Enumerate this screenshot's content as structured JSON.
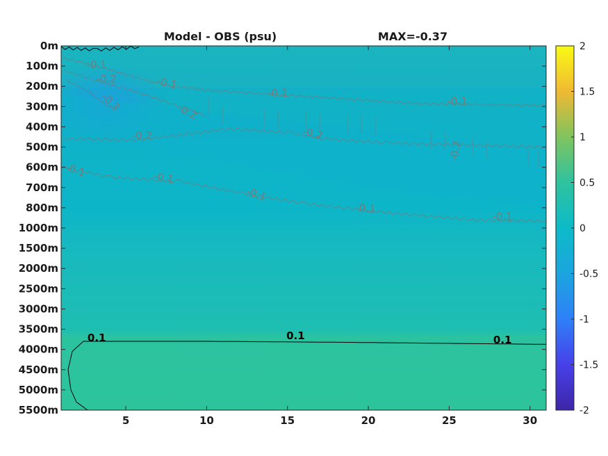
{
  "chart_data": {
    "type": "heatmap",
    "title": "Model - OBS (psu)",
    "annotation": "MAX=-0.37",
    "x_ticks": [
      "5",
      "10",
      "15",
      "20",
      "25",
      "30"
    ],
    "x_tick_values": [
      5,
      10,
      15,
      20,
      25,
      30
    ],
    "xlim": [
      1,
      31
    ],
    "y_ticks": [
      "0m",
      "100m",
      "200m",
      "300m",
      "400m",
      "500m",
      "600m",
      "700m",
      "800m",
      "1000m",
      "1500m",
      "2000m",
      "2500m",
      "3000m",
      "3500m",
      "4000m",
      "4500m",
      "5000m",
      "5500m"
    ],
    "colorbar": {
      "range": [
        -2,
        2
      ],
      "ticks": [
        "2",
        "1.5",
        "1",
        "0.5",
        "0",
        "-0.5",
        "-1",
        "-1.5",
        "-2"
      ],
      "colormap": "parula"
    },
    "contours": [
      {
        "level": "-0.1",
        "color": "#7a7a7a"
      },
      {
        "level": "-0.2",
        "color": "#7a7a7a"
      },
      {
        "level": "-0.3",
        "color": "#7a7a7a"
      },
      {
        "level": "0.1",
        "color": "#000000"
      }
    ],
    "contour_labels": [
      {
        "text": "-0.1",
        "x": 3.2,
        "depth_index": 1.1,
        "color": "#7a7a7a",
        "rot": 0
      },
      {
        "text": "-0.2",
        "x": 3.8,
        "depth_index": 1.8,
        "color": "#7a7a7a",
        "rot": 0
      },
      {
        "text": "-0.3",
        "x": 3.9,
        "depth_index": 2.9,
        "color": "#7a7a7a",
        "rot": 45
      },
      {
        "text": "-0.1",
        "x": 7.5,
        "depth_index": 2.0,
        "color": "#7a7a7a",
        "rot": 15
      },
      {
        "text": "-0.2",
        "x": 8.7,
        "depth_index": 3.4,
        "color": "#7a7a7a",
        "rot": 30
      },
      {
        "text": "-0.1",
        "x": 14.4,
        "depth_index": 2.5,
        "color": "#7a7a7a",
        "rot": 0
      },
      {
        "text": "-0.1",
        "x": 25.5,
        "depth_index": 2.9,
        "color": "#7a7a7a",
        "rot": 0
      },
      {
        "text": "-0.2",
        "x": 6.0,
        "depth_index": 4.6,
        "color": "#7a7a7a",
        "rot": 0
      },
      {
        "text": "-0.2",
        "x": 16.5,
        "depth_index": 4.5,
        "color": "#7a7a7a",
        "rot": 15
      },
      {
        "text": "-0.2",
        "x": 25.6,
        "depth_index": 5.2,
        "color": "#7a7a7a",
        "rot": -80
      },
      {
        "text": "-0.1",
        "x": 1.8,
        "depth_index": 6.3,
        "color": "#7a7a7a",
        "rot": 20
      },
      {
        "text": "-0.1",
        "x": 7.3,
        "depth_index": 6.7,
        "color": "#7a7a7a",
        "rot": 10
      },
      {
        "text": "-0.1",
        "x": 13.0,
        "depth_index": 7.5,
        "color": "#7a7a7a",
        "rot": 20
      },
      {
        "text": "-0.1",
        "x": 19.8,
        "depth_index": 8.2,
        "color": "#7a7a7a",
        "rot": 5
      },
      {
        "text": "-0.1",
        "x": 28.3,
        "depth_index": 8.6,
        "color": "#7a7a7a",
        "rot": 0
      },
      {
        "text": "0.1",
        "x": 3.2,
        "depth_index": 14.6,
        "color": "#000000",
        "rot": 0
      },
      {
        "text": "0.1",
        "x": 15.5,
        "depth_index": 14.5,
        "color": "#000000",
        "rot": 0
      },
      {
        "text": "0.1",
        "x": 28.3,
        "depth_index": 14.7,
        "color": "#000000",
        "rot": 0
      }
    ],
    "field_colors": {
      "upper_mid": "#14b0c7",
      "core_neg": "#1b9fdb",
      "background": "#19b7b9",
      "lower": "#27c2a4",
      "deep": "#2cc49d"
    },
    "grid": false
  }
}
